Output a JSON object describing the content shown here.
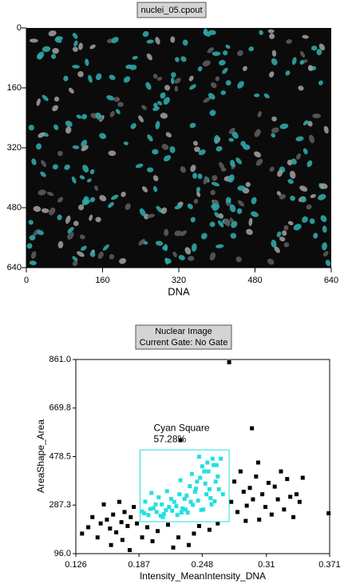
{
  "chart_data": [
    {
      "type": "image",
      "title": "nuclei_05.cpout",
      "xlabel": "DNA",
      "xlim": [
        0,
        640
      ],
      "ylim": [
        0,
        640
      ],
      "y_inverted": true,
      "xticks": [
        0,
        160,
        320,
        480,
        640
      ],
      "yticks": [
        0,
        160,
        320,
        480,
        640
      ]
    },
    {
      "type": "scatter",
      "title": "Nuclear Image",
      "subtitle": "Current Gate: No Gate",
      "xlabel": "Intensity_MeanIntensity_DNA",
      "ylabel": "AreaShape_Area",
      "xlim": [
        0.126,
        0.371
      ],
      "ylim": [
        96,
        861
      ],
      "xticks": [
        0.126,
        0.187,
        0.248,
        0.31,
        0.371
      ],
      "yticks": [
        {
          "value": 96,
          "label": "96.0"
        },
        287.3,
        478.5,
        669.8,
        {
          "value": 861,
          "label": "861.0"
        }
      ],
      "gate": {
        "name": "Cyan Square",
        "label": "57.28%",
        "color": "#22e0e0",
        "x": [
          0.188,
          0.274
        ],
        "y": [
          222,
          505
        ]
      },
      "series": [
        {
          "color": "#22e0e0",
          "x": [
            0.19,
            0.193,
            0.196,
            0.199,
            0.201,
            0.204,
            0.206,
            0.209,
            0.211,
            0.214,
            0.216,
            0.219,
            0.221,
            0.224,
            0.226,
            0.229,
            0.231,
            0.234,
            0.236,
            0.239,
            0.241,
            0.244,
            0.246,
            0.249,
            0.251,
            0.254,
            0.256,
            0.259,
            0.261,
            0.264,
            0.192,
            0.198,
            0.203,
            0.208,
            0.213,
            0.218,
            0.223,
            0.228,
            0.233,
            0.238,
            0.243,
            0.248,
            0.253,
            0.258,
            0.263,
            0.237,
            0.242,
            0.247,
            0.252,
            0.257,
            0.262,
            0.245,
            0.255,
            0.26,
            0.25,
            0.266,
            0.268,
            0.232,
            0.227,
            0.21
          ],
          "values": [
            262,
            301,
            248,
            335,
            275,
            260,
            318,
            290,
            252,
            342,
            280,
            265,
            300,
            248,
            330,
            274,
            312,
            258,
            362,
            288,
            340,
            305,
            395,
            270,
            372,
            420,
            315,
            445,
            380,
            350,
            255,
            272,
            290,
            245,
            268,
            312,
            283,
            258,
            325,
            410,
            380,
            440,
            455,
            470,
            400,
            300,
            352,
            268,
            330,
            290,
            445,
            478,
            350,
            302,
            420,
            470,
            330,
            270,
            385,
            240
          ]
        },
        {
          "color": "#000000",
          "x": [
            0.132,
            0.138,
            0.142,
            0.147,
            0.15,
            0.153,
            0.156,
            0.159,
            0.162,
            0.165,
            0.168,
            0.17,
            0.173,
            0.176,
            0.179,
            0.182,
            0.185,
            0.16,
            0.171,
            0.178,
            0.195,
            0.205,
            0.215,
            0.225,
            0.235,
            0.245,
            0.2,
            0.22,
            0.24,
            0.255,
            0.276,
            0.279,
            0.282,
            0.285,
            0.288,
            0.291,
            0.294,
            0.297,
            0.3,
            0.303,
            0.306,
            0.309,
            0.312,
            0.315,
            0.318,
            0.321,
            0.324,
            0.327,
            0.33,
            0.333,
            0.336,
            0.339,
            0.342,
            0.345,
            0.296,
            0.29,
            0.302,
            0.37,
            0.227,
            0.274,
            0.19,
            0.263
          ],
          "values": [
            175,
            200,
            240,
            160,
            215,
            290,
            230,
            195,
            250,
            180,
            300,
            220,
            260,
            205,
            240,
            280,
            215,
            130,
            150,
            110,
            200,
            185,
            210,
            160,
            130,
            205,
            145,
            120,
            175,
            190,
            300,
            380,
            260,
            420,
            340,
            285,
            355,
            310,
            400,
            230,
            330,
            280,
            375,
            250,
            360,
            310,
            420,
            270,
            390,
            320,
            240,
            330,
            300,
            395,
            590,
            225,
            455,
            255,
            543,
            850,
            160,
            215
          ]
        }
      ]
    }
  ]
}
